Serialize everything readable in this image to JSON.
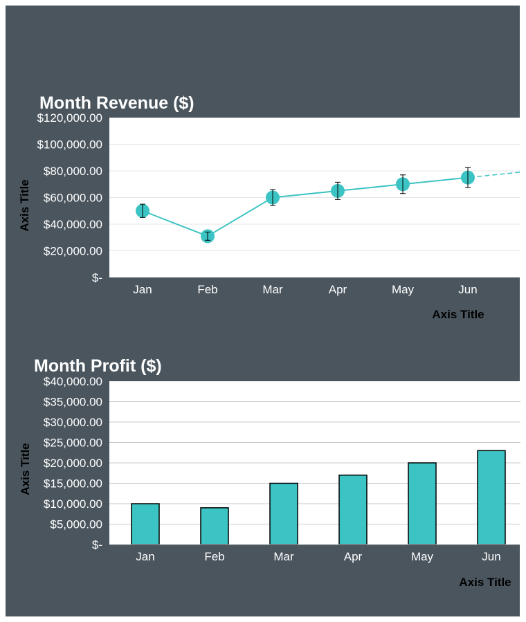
{
  "colors": {
    "background": "#4a555d",
    "plot_area": "#ffffff",
    "series": "#3cc3c3",
    "bar_border": "#000000"
  },
  "chart_data": [
    {
      "type": "line",
      "title": "Month Revenue ($)",
      "xlabel": "Axis Title",
      "ylabel": "Axis Title",
      "categories": [
        "Jan",
        "Feb",
        "Mar",
        "Apr",
        "May",
        "Jun"
      ],
      "yticks": [
        "$120,000.00",
        "$100,000.00",
        "$80,000.00",
        "$60,000.00",
        "$40,000.00",
        "$20,000.00",
        "$-"
      ],
      "ylim": [
        0,
        120000
      ],
      "grid": true,
      "legend": "none",
      "error_bars": "percentage",
      "error_percent": 10,
      "trendline": "dashed linear from Mar",
      "series": [
        {
          "values": [
            50000,
            31000,
            60000,
            65000,
            70000,
            75000
          ]
        }
      ]
    },
    {
      "type": "bar",
      "title": "Month Profit ($)",
      "xlabel": "Axis Title",
      "ylabel": "Axis Title",
      "categories": [
        "Jan",
        "Feb",
        "Mar",
        "Apr",
        "May",
        "Jun"
      ],
      "yticks": [
        "$40,000.00",
        "$35,000.00",
        "$30,000.00",
        "$25,000.00",
        "$20,000.00",
        "$15,000.00",
        "$10,000.00",
        "$5,000.00",
        "$-"
      ],
      "ylim": [
        0,
        40000
      ],
      "grid": true,
      "legend": "none",
      "series": [
        {
          "values": [
            10000,
            9000,
            15000,
            17000,
            20000,
            23000
          ]
        }
      ]
    }
  ]
}
